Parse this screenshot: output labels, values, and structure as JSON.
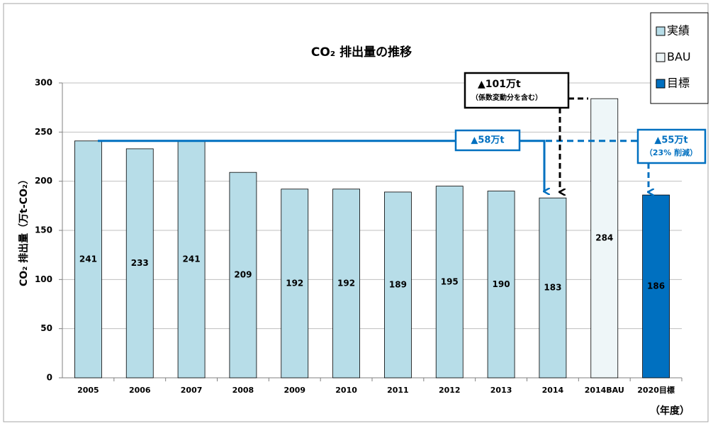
{
  "chart_data": {
    "type": "bar",
    "title": "CO₂ 排出量の推移",
    "y_label": "CO₂ 排出量（万t-CO₂）",
    "x_label": "（年度）",
    "categories": [
      "2005",
      "2006",
      "2007",
      "2008",
      "2009",
      "2010",
      "2011",
      "2012",
      "2013",
      "2014",
      "2014BAU",
      "2020目標"
    ],
    "values": [
      241,
      233,
      241,
      209,
      192,
      192,
      189,
      195,
      190,
      183,
      284,
      186
    ],
    "colors": [
      "#b7dde8",
      "#b7dde8",
      "#b7dde8",
      "#b7dde8",
      "#b7dde8",
      "#b7dde8",
      "#b7dde8",
      "#b7dde8",
      "#b7dde8",
      "#b7dde8",
      "#eef6f8",
      "#0070c0"
    ],
    "ylim": [
      0,
      300
    ],
    "yticks": [
      0,
      50,
      100,
      150,
      200,
      250,
      300
    ],
    "grid": true,
    "legend": [
      {
        "name": "実績",
        "color": "#b7dde8"
      },
      {
        "name": "BAU",
        "color": "#eef6f8"
      },
      {
        "name": "目標",
        "color": "#0070c0"
      }
    ],
    "annotations": [
      "▲101万t",
      "（係数変動分を含む）",
      "▲58万t",
      "▲55万t",
      "（23% 削減）"
    ]
  }
}
